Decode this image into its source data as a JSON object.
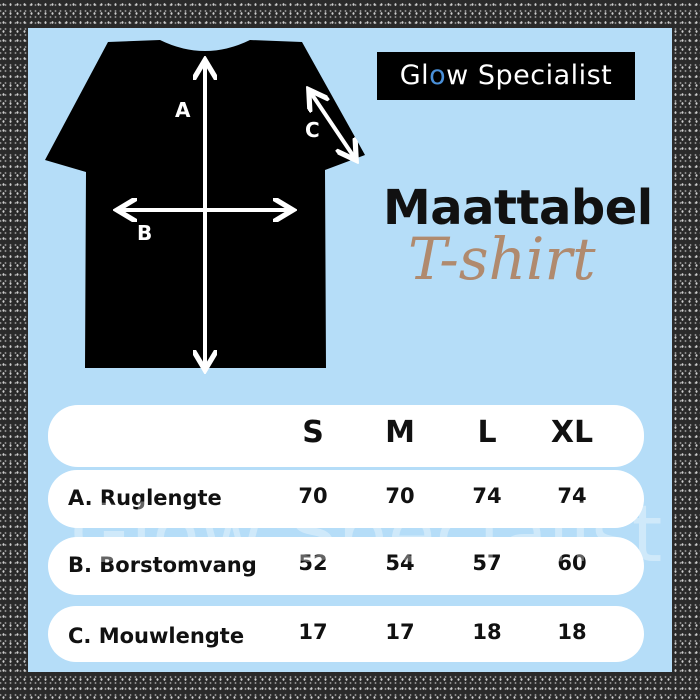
{
  "brand": {
    "logo_prefix": "Gl",
    "logo_o": "o",
    "logo_suffix": "w Specialist",
    "accent": "#4a90d9",
    "watermark": "Glow Specialist"
  },
  "heading": {
    "title": "Maattabel",
    "subtitle": "T-shirt"
  },
  "diagram": {
    "labels": {
      "a": "A",
      "b": "B",
      "c": "C"
    }
  },
  "table": {
    "sizes": [
      "S",
      "M",
      "L",
      "XL"
    ],
    "rows": [
      {
        "label": "A. Ruglengte",
        "values": [
          "70",
          "70",
          "74",
          "74"
        ]
      },
      {
        "label": "B. Borstomvang",
        "values": [
          "52",
          "54",
          "57",
          "60"
        ]
      },
      {
        "label": "C. Mouwlengte",
        "values": [
          "17",
          "17",
          "18",
          "18"
        ]
      }
    ]
  }
}
